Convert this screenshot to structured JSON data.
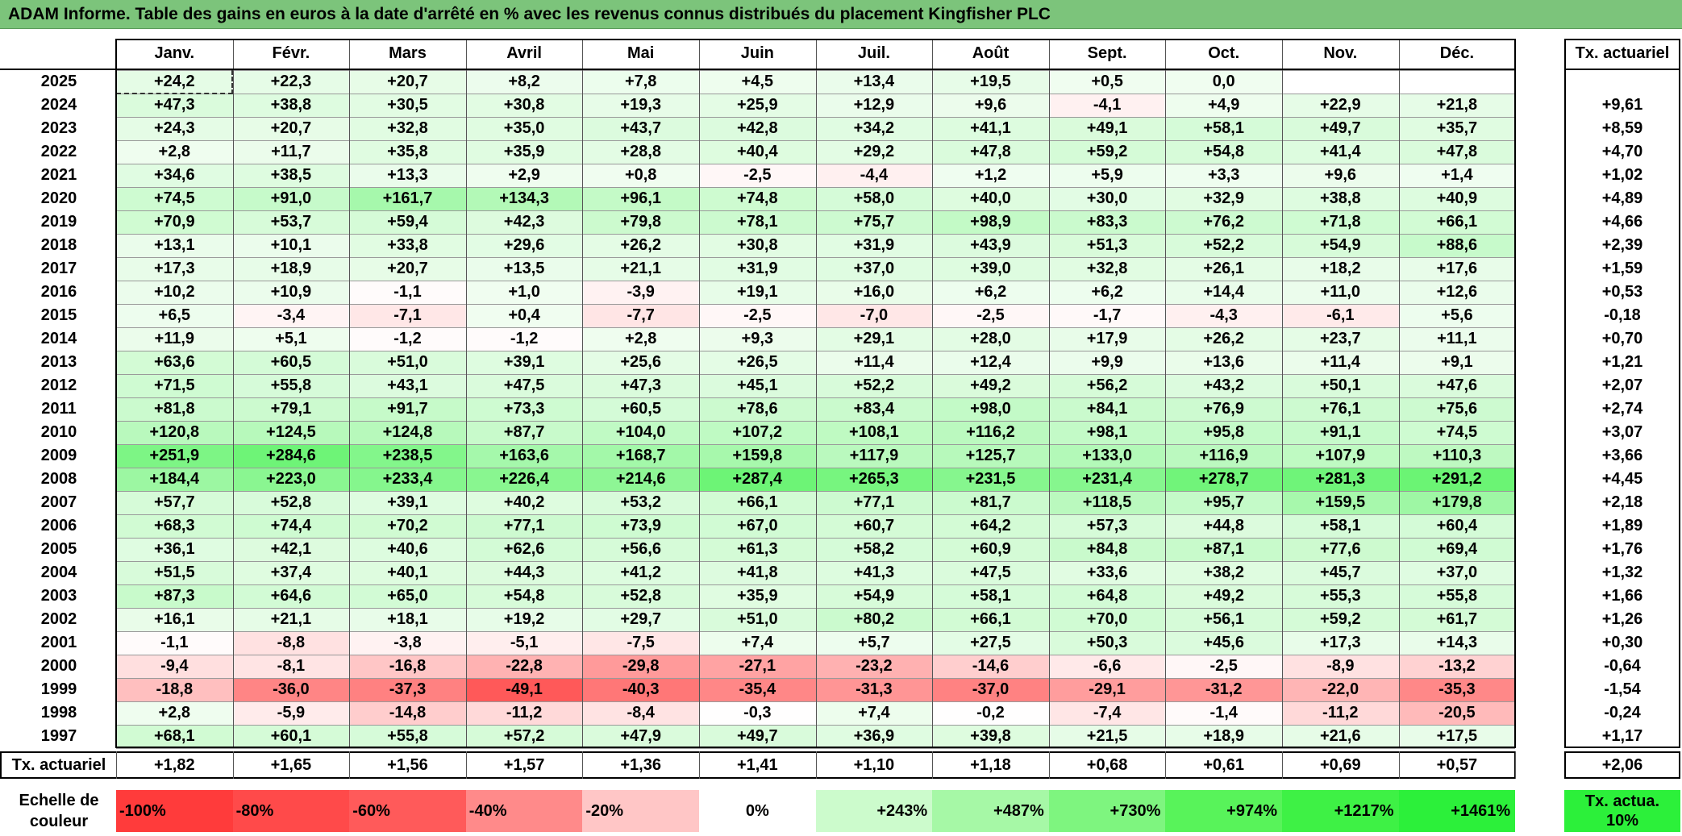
{
  "title": "ADAM Informe. Table des gains en euros à la date d'arrêté en % avec les revenus connus distribués du placement Kingfisher PLC",
  "colors": {
    "title_bg": "#7cc47b",
    "neg_max": "#ff3b3b",
    "pos_max": "#2cf03a",
    "neutral": "#ffffff"
  },
  "chart_data": {
    "type": "table",
    "title": "ADAM Informe. Table des gains en euros à la date d'arrêté en % avec les revenus connus distribués du placement Kingfisher PLC",
    "columns": [
      "Janv.",
      "Févr.",
      "Mars",
      "Avril",
      "Mai",
      "Juin",
      "Juil.",
      "Août",
      "Sept.",
      "Oct.",
      "Nov.",
      "Déc."
    ],
    "rate_header": "Tx. actuariel",
    "rows": [
      {
        "year": "2025",
        "values": [
          "+24,2",
          "+22,3",
          "+20,7",
          "+8,2",
          "+7,8",
          "+4,5",
          "+13,4",
          "+19,5",
          "+0,5",
          "0,0",
          "",
          ""
        ],
        "rate": ""
      },
      {
        "year": "2024",
        "values": [
          "+47,3",
          "+38,8",
          "+30,5",
          "+30,8",
          "+19,3",
          "+25,9",
          "+12,9",
          "+9,6",
          "-4,1",
          "+4,9",
          "+22,9",
          "+21,8"
        ],
        "rate": "+9,61"
      },
      {
        "year": "2023",
        "values": [
          "+24,3",
          "+20,7",
          "+32,8",
          "+35,0",
          "+43,7",
          "+42,8",
          "+34,2",
          "+41,1",
          "+49,1",
          "+58,1",
          "+49,7",
          "+35,7"
        ],
        "rate": "+8,59"
      },
      {
        "year": "2022",
        "values": [
          "+2,8",
          "+11,7",
          "+35,8",
          "+35,9",
          "+28,8",
          "+40,4",
          "+29,2",
          "+47,8",
          "+59,2",
          "+54,8",
          "+41,4",
          "+47,8"
        ],
        "rate": "+4,70"
      },
      {
        "year": "2021",
        "values": [
          "+34,6",
          "+38,5",
          "+13,3",
          "+2,9",
          "+0,8",
          "-2,5",
          "-4,4",
          "+1,2",
          "+5,9",
          "+3,3",
          "+9,6",
          "+1,4"
        ],
        "rate": "+1,02"
      },
      {
        "year": "2020",
        "values": [
          "+74,5",
          "+91,0",
          "+161,7",
          "+134,3",
          "+96,1",
          "+74,8",
          "+58,0",
          "+40,0",
          "+30,0",
          "+32,9",
          "+38,8",
          "+40,9"
        ],
        "rate": "+4,89"
      },
      {
        "year": "2019",
        "values": [
          "+70,9",
          "+53,7",
          "+59,4",
          "+42,3",
          "+79,8",
          "+78,1",
          "+75,7",
          "+98,9",
          "+83,3",
          "+76,2",
          "+71,8",
          "+66,1"
        ],
        "rate": "+4,66"
      },
      {
        "year": "2018",
        "values": [
          "+13,1",
          "+10,1",
          "+33,8",
          "+29,6",
          "+26,2",
          "+30,8",
          "+31,9",
          "+43,9",
          "+51,3",
          "+52,2",
          "+54,9",
          "+88,6"
        ],
        "rate": "+2,39"
      },
      {
        "year": "2017",
        "values": [
          "+17,3",
          "+18,9",
          "+20,7",
          "+13,5",
          "+21,1",
          "+31,9",
          "+37,0",
          "+39,0",
          "+32,8",
          "+26,1",
          "+18,2",
          "+17,6"
        ],
        "rate": "+1,59"
      },
      {
        "year": "2016",
        "values": [
          "+10,2",
          "+10,9",
          "-1,1",
          "+1,0",
          "-3,9",
          "+19,1",
          "+16,0",
          "+6,2",
          "+6,2",
          "+14,4",
          "+11,0",
          "+12,6"
        ],
        "rate": "+0,53"
      },
      {
        "year": "2015",
        "values": [
          "+6,5",
          "-3,4",
          "-7,1",
          "+0,4",
          "-7,7",
          "-2,5",
          "-7,0",
          "-2,5",
          "-1,7",
          "-4,3",
          "-6,1",
          "+5,6"
        ],
        "rate": "-0,18"
      },
      {
        "year": "2014",
        "values": [
          "+11,9",
          "+5,1",
          "-1,2",
          "-1,2",
          "+2,8",
          "+9,3",
          "+29,1",
          "+28,0",
          "+17,9",
          "+26,2",
          "+23,7",
          "+11,1"
        ],
        "rate": "+0,70"
      },
      {
        "year": "2013",
        "values": [
          "+63,6",
          "+60,5",
          "+51,0",
          "+39,1",
          "+25,6",
          "+26,5",
          "+11,4",
          "+12,4",
          "+9,9",
          "+13,6",
          "+11,4",
          "+9,1"
        ],
        "rate": "+1,21"
      },
      {
        "year": "2012",
        "values": [
          "+71,5",
          "+55,8",
          "+43,1",
          "+47,5",
          "+47,3",
          "+45,1",
          "+52,2",
          "+49,2",
          "+56,2",
          "+43,2",
          "+50,1",
          "+47,6"
        ],
        "rate": "+2,07"
      },
      {
        "year": "2011",
        "values": [
          "+81,8",
          "+79,1",
          "+91,7",
          "+73,3",
          "+60,5",
          "+78,6",
          "+83,4",
          "+98,0",
          "+84,1",
          "+76,9",
          "+76,1",
          "+75,6"
        ],
        "rate": "+2,74"
      },
      {
        "year": "2010",
        "values": [
          "+120,8",
          "+124,5",
          "+124,8",
          "+87,7",
          "+104,0",
          "+107,2",
          "+108,1",
          "+116,2",
          "+98,1",
          "+95,8",
          "+91,1",
          "+74,5"
        ],
        "rate": "+3,07"
      },
      {
        "year": "2009",
        "values": [
          "+251,9",
          "+284,6",
          "+238,5",
          "+163,6",
          "+168,7",
          "+159,8",
          "+117,9",
          "+125,7",
          "+133,0",
          "+116,9",
          "+107,9",
          "+110,3"
        ],
        "rate": "+3,66"
      },
      {
        "year": "2008",
        "values": [
          "+184,4",
          "+223,0",
          "+233,4",
          "+226,4",
          "+214,6",
          "+287,4",
          "+265,3",
          "+231,5",
          "+231,4",
          "+278,7",
          "+281,3",
          "+291,2"
        ],
        "rate": "+4,45"
      },
      {
        "year": "2007",
        "values": [
          "+57,7",
          "+52,8",
          "+39,1",
          "+40,2",
          "+53,2",
          "+66,1",
          "+77,1",
          "+81,7",
          "+118,5",
          "+95,7",
          "+159,5",
          "+179,8"
        ],
        "rate": "+2,18"
      },
      {
        "year": "2006",
        "values": [
          "+68,3",
          "+74,4",
          "+70,2",
          "+77,1",
          "+73,9",
          "+67,0",
          "+60,7",
          "+64,2",
          "+57,3",
          "+44,8",
          "+58,1",
          "+60,4"
        ],
        "rate": "+1,89"
      },
      {
        "year": "2005",
        "values": [
          "+36,1",
          "+42,1",
          "+40,6",
          "+62,6",
          "+56,6",
          "+61,3",
          "+58,2",
          "+60,9",
          "+84,8",
          "+87,1",
          "+77,6",
          "+69,4"
        ],
        "rate": "+1,76"
      },
      {
        "year": "2004",
        "values": [
          "+51,5",
          "+37,4",
          "+40,1",
          "+44,3",
          "+41,2",
          "+41,8",
          "+41,3",
          "+47,5",
          "+33,6",
          "+38,2",
          "+45,7",
          "+37,0"
        ],
        "rate": "+1,32"
      },
      {
        "year": "2003",
        "values": [
          "+87,3",
          "+64,6",
          "+65,0",
          "+54,8",
          "+52,8",
          "+35,9",
          "+54,9",
          "+58,1",
          "+64,8",
          "+49,2",
          "+55,3",
          "+55,8"
        ],
        "rate": "+1,66"
      },
      {
        "year": "2002",
        "values": [
          "+16,1",
          "+21,1",
          "+18,1",
          "+19,2",
          "+29,7",
          "+51,0",
          "+80,2",
          "+66,1",
          "+70,0",
          "+56,1",
          "+59,2",
          "+61,7"
        ],
        "rate": "+1,26"
      },
      {
        "year": "2001",
        "values": [
          "-1,1",
          "-8,8",
          "-3,8",
          "-5,1",
          "-7,5",
          "+7,4",
          "+5,7",
          "+27,5",
          "+50,3",
          "+45,6",
          "+17,3",
          "+14,3"
        ],
        "rate": "+0,30"
      },
      {
        "year": "2000",
        "values": [
          "-9,4",
          "-8,1",
          "-16,8",
          "-22,8",
          "-29,8",
          "-27,1",
          "-23,2",
          "-14,6",
          "-6,6",
          "-2,5",
          "-8,9",
          "-13,2"
        ],
        "rate": "-0,64"
      },
      {
        "year": "1999",
        "values": [
          "-18,8",
          "-36,0",
          "-37,3",
          "-49,1",
          "-40,3",
          "-35,4",
          "-31,3",
          "-37,0",
          "-29,1",
          "-31,2",
          "-22,0",
          "-35,3"
        ],
        "rate": "-1,54"
      },
      {
        "year": "1998",
        "values": [
          "+2,8",
          "-5,9",
          "-14,8",
          "-11,2",
          "-8,4",
          "-0,3",
          "+7,4",
          "-0,2",
          "-7,4",
          "-1,4",
          "-11,2",
          "-20,5"
        ],
        "rate": "-0,24"
      },
      {
        "year": "1997",
        "values": [
          "+68,1",
          "+60,1",
          "+55,8",
          "+57,2",
          "+47,9",
          "+49,7",
          "+36,9",
          "+39,8",
          "+21,5",
          "+18,9",
          "+21,6",
          "+17,5"
        ],
        "rate": "+1,17"
      }
    ],
    "summary": {
      "label": "Tx. actuariel",
      "values": [
        "+1,82",
        "+1,65",
        "+1,56",
        "+1,57",
        "+1,36",
        "+1,41",
        "+1,10",
        "+1,18",
        "+0,68",
        "+0,61",
        "+0,69",
        "+0,57"
      ],
      "rate": "+2,06"
    },
    "scale": {
      "label": "Echelle de couleur",
      "items": [
        "-100%",
        "-80%",
        "-60%",
        "-40%",
        "-20%",
        "0%",
        "+243%",
        "+487%",
        "+730%",
        "+974%",
        "+1217%",
        "+1461%"
      ],
      "rate_label": "Tx. actua. 10%"
    }
  }
}
